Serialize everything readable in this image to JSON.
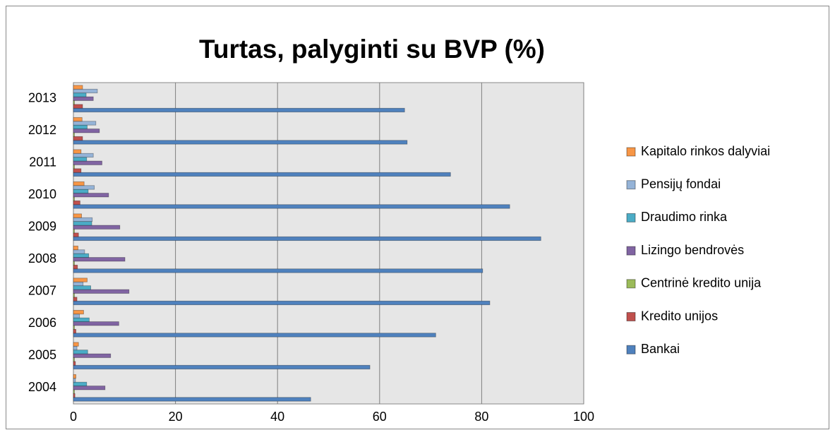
{
  "chart_data": {
    "type": "barh",
    "title": "Turtas, palyginti su BVP (%)",
    "categories": [
      "2004",
      "2005",
      "2006",
      "2007",
      "2008",
      "2009",
      "2010",
      "2011",
      "2012",
      "2013"
    ],
    "series": [
      {
        "name": "Bankai",
        "color": "#4f81bd",
        "values": [
          46.5,
          58.1,
          71,
          81.6,
          80.2,
          91.6,
          85.5,
          73.9,
          65.4,
          64.9
        ]
      },
      {
        "name": "Kredito unijos",
        "color": "#c0504d",
        "values": [
          0.3,
          0.4,
          0.5,
          0.7,
          0.8,
          1.0,
          1.3,
          1.5,
          1.8,
          1.8
        ]
      },
      {
        "name": "Centrinė kredito unija",
        "color": "#9bbb59",
        "values": [
          0.2,
          0.2,
          0.2,
          0.2,
          0.2,
          0.2,
          0.2,
          0.2,
          0.2,
          0.2
        ]
      },
      {
        "name": "Lizingo bendrovės",
        "color": "#8064a2",
        "values": [
          6.2,
          7.3,
          8.9,
          10.9,
          10.1,
          9.1,
          6.9,
          5.6,
          5.1,
          3.9
        ]
      },
      {
        "name": "Draudimo rinka",
        "color": "#4bacc6",
        "values": [
          2.6,
          2.8,
          3.1,
          3.4,
          3.0,
          3.6,
          2.9,
          2.6,
          2.7,
          2.5
        ]
      },
      {
        "name": "Pensijų fondai",
        "color": "#95b3d7",
        "values": [
          0.4,
          0.7,
          1.2,
          1.9,
          2.2,
          3.7,
          4.1,
          3.9,
          4.4,
          4.7
        ]
      },
      {
        "name": "Kapitalo rinkos dalyviai",
        "color": "#f79646",
        "values": [
          0.5,
          1.0,
          2.0,
          2.7,
          0.9,
          1.6,
          2.1,
          1.5,
          1.7,
          1.8
        ]
      }
    ],
    "xlim": [
      0,
      100
    ],
    "xticks": [
      0,
      20,
      40,
      60,
      80,
      100
    ],
    "grid": true,
    "legend": "right"
  }
}
